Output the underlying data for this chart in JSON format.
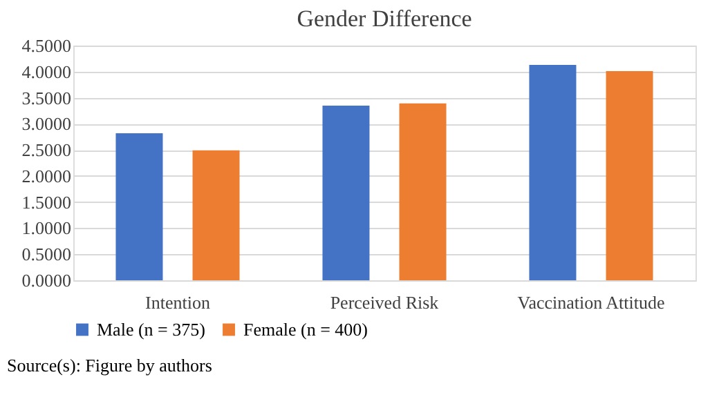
{
  "chart_data": {
    "type": "bar",
    "title": "Gender Difference",
    "categories": [
      "Intention",
      "Perceived Risk",
      "Vaccination Attitude"
    ],
    "series": [
      {
        "name": "Male (n = 375)",
        "color": "#4472c4",
        "values": [
          2.82,
          3.35,
          4.13
        ]
      },
      {
        "name": "Female (n = 400)",
        "color": "#ed7d31",
        "values": [
          2.49,
          3.39,
          4.01
        ]
      }
    ],
    "ylim": [
      0,
      4.5
    ],
    "yticks": [
      {
        "value": 0,
        "label": "0.0000"
      },
      {
        "value": 0.5,
        "label": "0.5000"
      },
      {
        "value": 1,
        "label": "1.0000"
      },
      {
        "value": 1.5,
        "label": "1.5000"
      },
      {
        "value": 2,
        "label": "2.0000"
      },
      {
        "value": 2.5,
        "label": "2.5000"
      },
      {
        "value": 3,
        "label": "3.0000"
      },
      {
        "value": 3.5,
        "label": "3.5000"
      },
      {
        "value": 4,
        "label": "4.0000"
      },
      {
        "value": 4.5,
        "label": "4.5000"
      }
    ],
    "grid": "y",
    "legend": "bottom",
    "annotations": [
      "Source(s): Figure by authors"
    ]
  }
}
